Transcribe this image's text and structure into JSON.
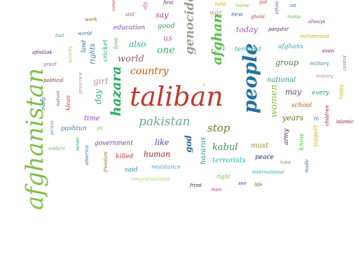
{
  "word_cloud": {
    "words": [
      {
        "text": "taliban",
        "color": "#c0392b"
      },
      {
        "text": "afghanistan",
        "color": "#7dc04a"
      },
      {
        "text": "people",
        "color": "#2471a3"
      },
      {
        "text": "hazara",
        "color": "#27ae60"
      },
      {
        "text": "genocide",
        "color": "#a29a8c"
      },
      {
        "text": "afghan",
        "color": "#58c24a"
      },
      {
        "text": "pakistan",
        "color": "#6aa99a"
      },
      {
        "text": "country",
        "color": "#d35400"
      },
      {
        "text": "women",
        "color": "#8bc34a"
      },
      {
        "text": "stop",
        "color": "#6b7a2a"
      },
      {
        "text": "kabul",
        "color": "#3c8f5f"
      },
      {
        "text": "world",
        "color": "#8e5a7a"
      },
      {
        "text": "one",
        "color": "#3bb36b"
      },
      {
        "text": "also",
        "color": "#2ab0a0"
      },
      {
        "text": "today",
        "color": "#9b59b6"
      },
      {
        "text": "girl",
        "color": "#c4889a"
      },
      {
        "text": "day",
        "color": "#27ae60"
      },
      {
        "text": "national",
        "color": "#3a9a8a"
      },
      {
        "text": "group",
        "color": "#4f7a3a"
      },
      {
        "text": "may",
        "color": "#6c3483"
      },
      {
        "text": "years",
        "color": "#7a6a2a"
      },
      {
        "text": "terrorist",
        "color": "#2ab0a0"
      },
      {
        "text": "good",
        "color": "#2e9e6e"
      },
      {
        "text": "us",
        "color": "#b05a9e"
      },
      {
        "text": "say",
        "color": "#b0409e"
      },
      {
        "text": "education",
        "color": "#8e44ad"
      },
      {
        "text": "afghans",
        "color": "#3aa5a5"
      },
      {
        "text": "human",
        "color": "#922b21"
      },
      {
        "text": "like",
        "color": "#4a3a8e"
      },
      {
        "text": "god",
        "color": "#1f5fa0"
      },
      {
        "text": "hazaras",
        "color": "#2e8a9a"
      },
      {
        "text": "must",
        "color": "#9a8a2a"
      },
      {
        "text": "terrorists",
        "color": "#2ab0c0"
      },
      {
        "text": "peace",
        "color": "#1a2a4a"
      },
      {
        "text": "government",
        "color": "#7a3a8a"
      },
      {
        "text": "time",
        "color": "#8e44ad"
      },
      {
        "text": "pashtun",
        "color": "#4a7aa0"
      },
      {
        "text": "rights",
        "color": "#2e6fa0"
      },
      {
        "text": "land",
        "color": "#1f5fa0"
      },
      {
        "text": "cricket",
        "color": "#27ae60"
      },
      {
        "text": "love",
        "color": "#58a05a"
      },
      {
        "text": "killed",
        "color": "#c0392b"
      },
      {
        "text": "said",
        "color": "#2e8ab0"
      },
      {
        "text": "resistance",
        "color": "#3aa5c0"
      },
      {
        "text": "congratulations",
        "color": "#a6d86a"
      },
      {
        "text": "front",
        "color": "#1a2a4a"
      },
      {
        "text": "man",
        "color": "#b03a8e"
      },
      {
        "text": "see",
        "color": "#3a5a9e"
      },
      {
        "text": "life",
        "color": "#6a5a1a"
      },
      {
        "text": "right",
        "color": "#7dc04a"
      },
      {
        "text": "international",
        "color": "#2ab0c0"
      },
      {
        "text": "school",
        "color": "#d35400"
      },
      {
        "text": "army",
        "color": "#4a1a5a"
      },
      {
        "text": "know",
        "color": "#58c24a"
      },
      {
        "text": "support",
        "color": "#d4ac0d"
      },
      {
        "text": "made",
        "color": "#2e6fa0"
      },
      {
        "text": "take",
        "color": "#8e8e6a"
      },
      {
        "text": "every",
        "color": "#27ae60"
      },
      {
        "text": "history",
        "color": "#c4889a"
      },
      {
        "text": "happy",
        "color": "#d4ac0d"
      },
      {
        "text": "military",
        "color": "#4a7aa0"
      },
      {
        "text": "children",
        "color": "#8e1a2a"
      },
      {
        "text": "islamic",
        "color": "#8e1a2a"
      },
      {
        "text": "th",
        "color": "#2e6fa0"
      },
      {
        "text": "even",
        "color": "#8e1a5a"
      },
      {
        "text": "contol",
        "color": "#58a05a"
      },
      {
        "text": "mohammad",
        "color": "#d4ac0d"
      },
      {
        "text": "always",
        "color": "#7a3a8a"
      },
      {
        "text": "make",
        "color": "#58c24a"
      },
      {
        "text": "panjshir",
        "color": "#4a1a5a"
      },
      {
        "text": "ghani",
        "color": "#c0392b"
      },
      {
        "text": "new",
        "color": "#2e6fa0"
      },
      {
        "text": "name",
        "color": "#8bc34a"
      },
      {
        "text": "war",
        "color": "#c4889a"
      },
      {
        "text": "talib",
        "color": "#d4ac0d"
      },
      {
        "text": "got",
        "color": "#c0392b"
      },
      {
        "text": "un",
        "color": "#4a5a9e"
      },
      {
        "text": "ethnic",
        "color": "#3a5a9e"
      },
      {
        "text": "first",
        "color": "#4a1a5a"
      },
      {
        "text": "afg",
        "color": "#b05a9e"
      },
      {
        "text": "came",
        "color": "#c0392b"
      },
      {
        "text": "still",
        "color": "#8e5a7a"
      },
      {
        "text": "work",
        "color": "#9a6a2a"
      },
      {
        "text": "last",
        "color": "#27ae60"
      },
      {
        "text": "world",
        "color": "#2e6fa0"
      },
      {
        "text": "security",
        "color": "#8bc34a"
      },
      {
        "text": "afiniliok",
        "color": "#4a1a5a"
      },
      {
        "text": "great",
        "color": "#9b59b6"
      },
      {
        "text": "political",
        "color": "#8e1a2a"
      },
      {
        "text": "province",
        "color": "#c4889a"
      },
      {
        "text": "many",
        "color": "#1f5fa0"
      },
      {
        "text": "nation",
        "color": "#8e5a7a"
      },
      {
        "text": "klean",
        "color": "#c0392b"
      },
      {
        "text": "person",
        "color": "#4a7aa0"
      },
      {
        "text": "go",
        "color": "#7dc04a"
      },
      {
        "text": "soldiers",
        "color": "#58c24a"
      },
      {
        "text": "never",
        "color": "#27ae60"
      },
      {
        "text": "america",
        "color": "#2e6fa0"
      },
      {
        "text": "freedom",
        "color": "#9a6a2a"
      },
      {
        "text": "r",
        "color": "#d35400"
      }
    ]
  }
}
